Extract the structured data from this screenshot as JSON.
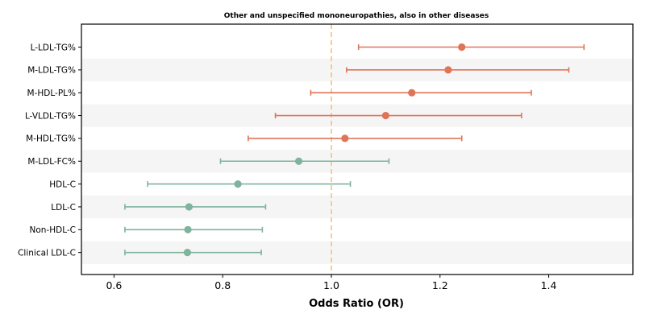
{
  "chart_data": {
    "type": "forest",
    "title": "Other and unspecified mononeuropathies, also in other diseases",
    "xlabel": "Odds Ratio (OR)",
    "ylabel": "",
    "xlim": [
      0.54,
      1.555
    ],
    "xticks": [
      0.6,
      0.8,
      1.0,
      1.2,
      1.4
    ],
    "xtick_labels": [
      "0.6",
      "0.8",
      "1.0",
      "1.2",
      "1.4"
    ],
    "reference_line": 1.0,
    "grid": false,
    "colors": {
      "positive": "#E07458",
      "negative": "#7FB39D",
      "reference": "#F5C07A",
      "band": "#F5F5F5"
    },
    "rows": [
      {
        "label": "L-LDL-TG%",
        "or": 1.24,
        "ci_low": 1.05,
        "ci_high": 1.465,
        "group": "positive"
      },
      {
        "label": "M-LDL-TG%",
        "or": 1.215,
        "ci_low": 1.028,
        "ci_high": 1.437,
        "group": "positive"
      },
      {
        "label": "M-HDL-PL%",
        "or": 1.148,
        "ci_low": 0.962,
        "ci_high": 1.368,
        "group": "positive"
      },
      {
        "label": "L-VLDL-TG%",
        "or": 1.1,
        "ci_low": 0.897,
        "ci_high": 1.35,
        "group": "positive"
      },
      {
        "label": "M-HDL-TG%",
        "or": 1.025,
        "ci_low": 0.847,
        "ci_high": 1.24,
        "group": "positive"
      },
      {
        "label": "M-LDL-FC%",
        "or": 0.94,
        "ci_low": 0.796,
        "ci_high": 1.106,
        "group": "negative"
      },
      {
        "label": "HDL-C",
        "or": 0.828,
        "ci_low": 0.662,
        "ci_high": 1.035,
        "group": "negative"
      },
      {
        "label": "LDL-C",
        "or": 0.738,
        "ci_low": 0.62,
        "ci_high": 0.879,
        "group": "negative"
      },
      {
        "label": "Non-HDL-C",
        "or": 0.736,
        "ci_low": 0.62,
        "ci_high": 0.873,
        "group": "negative"
      },
      {
        "label": "Clinical LDL-C",
        "or": 0.735,
        "ci_low": 0.62,
        "ci_high": 0.871,
        "group": "negative"
      }
    ]
  }
}
